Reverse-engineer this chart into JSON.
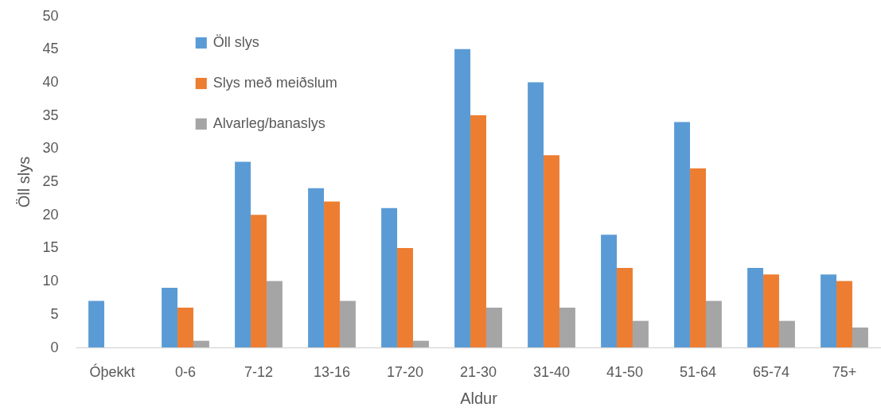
{
  "chart_data": {
    "type": "bar",
    "xlabel": "Aldur",
    "ylabel": "Öll slys",
    "categories": [
      "Óþekkt",
      "0-6",
      "7-12",
      "13-16",
      "17-20",
      "21-30",
      "31-40",
      "41-50",
      "51-64",
      "65-74",
      "75+"
    ],
    "series": [
      {
        "name": "Öll slys",
        "color": "#5b9bd5",
        "values": [
          7,
          9,
          28,
          24,
          21,
          45,
          40,
          17,
          34,
          12,
          11
        ]
      },
      {
        "name": "Slys með meiðslum",
        "color": "#ed7d31",
        "values": [
          null,
          6,
          20,
          22,
          15,
          35,
          29,
          12,
          27,
          11,
          10
        ]
      },
      {
        "name": "Alvarleg/banaslys",
        "color": "#a5a5a5",
        "values": [
          null,
          1,
          10,
          7,
          1,
          6,
          6,
          4,
          7,
          4,
          3
        ]
      }
    ],
    "ylim": [
      0,
      50
    ],
    "yticks": [
      0,
      5,
      10,
      15,
      20,
      25,
      30,
      35,
      40,
      45,
      50
    ],
    "legend": "top left"
  }
}
